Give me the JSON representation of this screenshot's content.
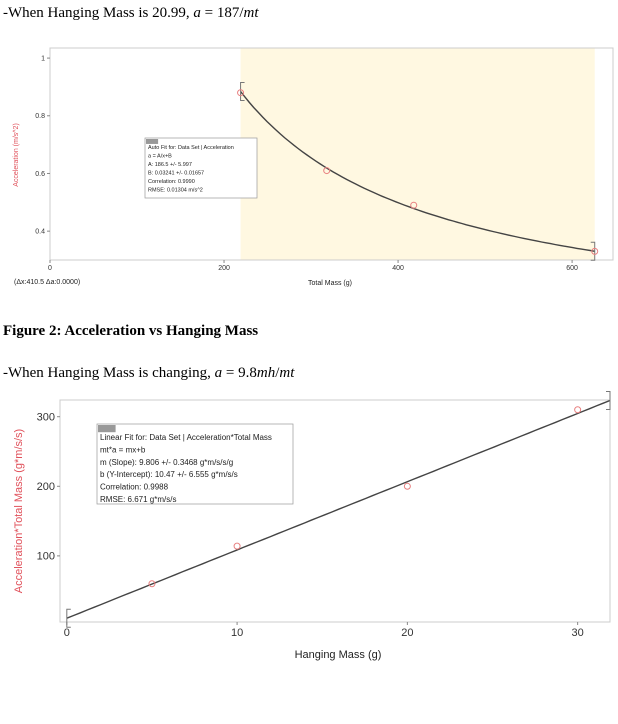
{
  "line1": [
    "-When Hanging Mass is 20.99, ",
    "a",
    " = 187/",
    "mt"
  ],
  "caption": "Figure 2: Acceleration vs Hanging Mass",
  "line2": [
    "-When Hanging Mass is changing, ",
    "a",
    " = 9.8",
    "mh",
    "/",
    "mt"
  ],
  "chart_data": [
    {
      "type": "scatter",
      "x": [
        219,
        318,
        418,
        626
      ],
      "values": [
        0.88,
        0.61,
        0.49,
        0.33
      ],
      "color": "#e88080",
      "xlim": [
        0,
        647
      ],
      "ylim": [
        0.3,
        1.035
      ],
      "xticks": [
        0,
        200,
        400,
        600
      ],
      "yticks": [
        0.4,
        0.6,
        0.8,
        1
      ],
      "grid": false,
      "shade": true,
      "fit_range": [
        219,
        626
      ],
      "fit": {
        "model": "inverse",
        "A": 186.5,
        "B": 0.03241
      },
      "xlabel": "Total Mass (g)",
      "ylabel": "Acceleration (m/s^2)",
      "note": "(Δx:410.5 Δa:0.0000)",
      "annotation": [
        "Auto Fit for: Data Set | Acceleration",
        "a = A/x+B",
        "A: 186.5 +/- 5.997",
        "B: 0.03241 +/- 0.01657",
        "Correlation: 0.9990",
        "RMSE: 0.01304 m/s^2"
      ]
    },
    {
      "type": "scatter",
      "x": [
        5,
        10,
        20,
        30
      ],
      "values": [
        60,
        114,
        200,
        310
      ],
      "color": "#e88080",
      "xlim": [
        -0.4,
        31.9
      ],
      "ylim": [
        5,
        324
      ],
      "xticks": [
        0,
        10,
        20,
        30
      ],
      "yticks": [
        100,
        200,
        300
      ],
      "grid": false,
      "shade": false,
      "fit_range": [
        0,
        31.9
      ],
      "fit": {
        "model": "linear",
        "m": 9.806,
        "b": 10.47
      },
      "xlabel": "Hanging Mass (g)",
      "ylabel": "Acceleration*Total Mass (g*m/s/s)",
      "annotation": [
        "Linear Fit for: Data Set | Acceleration*Total Mass",
        "mt*a = mx+b",
        "m (Slope): 9.806 +/- 0.3468 g*m/s/s/g",
        "b (Y-Intercept): 10.47 +/- 6.555 g*m/s/s",
        "Correlation: 0.9988",
        "RMSE: 6.671 g*m/s/s"
      ]
    }
  ]
}
